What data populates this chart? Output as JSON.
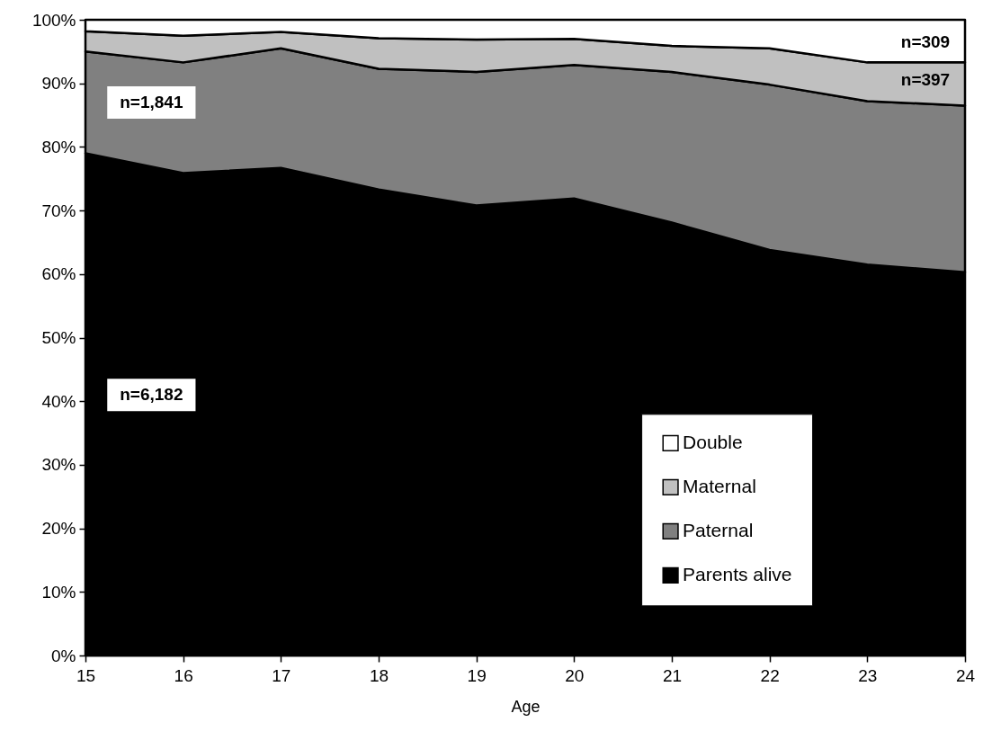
{
  "chart_data": {
    "type": "area",
    "stacked": true,
    "xlabel": "Age",
    "x": [
      15,
      16,
      17,
      18,
      19,
      20,
      21,
      22,
      23,
      24
    ],
    "xlim": [
      15,
      24
    ],
    "xticks": [
      15,
      16,
      17,
      18,
      19,
      20,
      21,
      22,
      23,
      24
    ],
    "ylim": [
      0,
      100
    ],
    "yticks": [
      {
        "value": 0,
        "label": "0%"
      },
      {
        "value": 10,
        "label": "10%"
      },
      {
        "value": 20,
        "label": "20%"
      },
      {
        "value": 30,
        "label": "30%"
      },
      {
        "value": 40,
        "label": "40%"
      },
      {
        "value": 50,
        "label": "50%"
      },
      {
        "value": 60,
        "label": "60%"
      },
      {
        "value": 70,
        "label": "70%"
      },
      {
        "value": 80,
        "label": "80%"
      },
      {
        "value": 90,
        "label": "90%"
      },
      {
        "value": 100,
        "label": "100%"
      }
    ],
    "series": [
      {
        "name": "Parents alive",
        "color": "#000000",
        "values": [
          79.0,
          75.9,
          76.7,
          73.3,
          70.8,
          71.9,
          68.1,
          63.8,
          61.5,
          60.3
        ]
      },
      {
        "name": "Paternal",
        "color": "#808080",
        "values": [
          16.0,
          17.4,
          18.8,
          19.0,
          21.0,
          21.0,
          23.7,
          26.0,
          25.7,
          26.2
        ]
      },
      {
        "name": "Maternal",
        "color": "#c0c0c0",
        "values": [
          3.2,
          4.2,
          2.6,
          4.8,
          5.1,
          4.1,
          4.1,
          5.7,
          6.1,
          6.8
        ]
      },
      {
        "name": "Double",
        "color": "#ffffff",
        "values": [
          1.8,
          2.5,
          1.9,
          2.9,
          3.1,
          3.0,
          4.1,
          4.5,
          6.7,
          6.7
        ]
      }
    ],
    "annotations": [
      "n=6,182",
      "n=1,841",
      "n=397",
      "n=309"
    ],
    "legend": "bottom right"
  }
}
